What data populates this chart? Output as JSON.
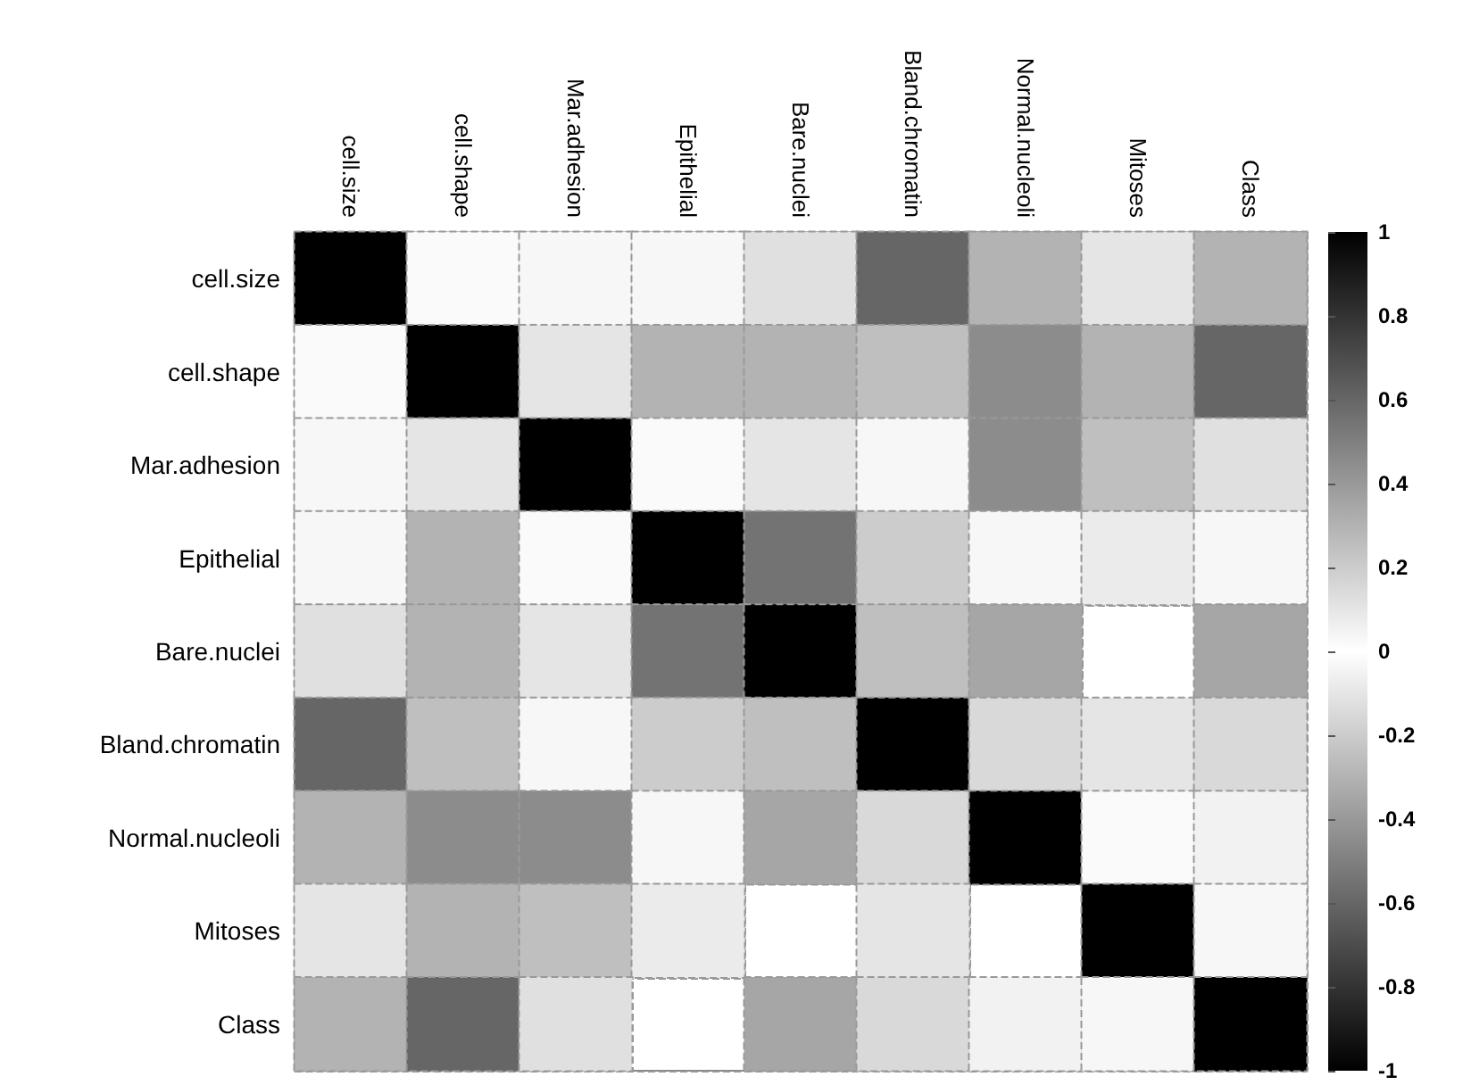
{
  "chart_data": {
    "type": "heatmap",
    "categories": [
      "cell.size",
      "cell.shape",
      "Mar.adhesion",
      "Epithelial",
      "Bare.nuclei",
      "Bland.chromatin",
      "Normal.nucleoli",
      "Mitoses",
      "Class"
    ],
    "y_categories": [
      "cell.size",
      "cell.shape",
      "Mar.adhesion",
      "Epithelial",
      "Bare.nuclei",
      "Bland.chromatin",
      "Normal.nucleoli",
      "Mitoses",
      "Class"
    ],
    "cells": [
      [
        1,
        0.02,
        0.03,
        0.03,
        0.12,
        0.6,
        0.3,
        0.1,
        0.3
      ],
      [
        0.02,
        1,
        0.1,
        0.3,
        0.3,
        0.25,
        0.45,
        0.3,
        0.6
      ],
      [
        0.03,
        0.1,
        1,
        0.02,
        0.1,
        0.03,
        0.45,
        0.25,
        0.12
      ],
      [
        0.03,
        0.3,
        0.02,
        1,
        0.55,
        0.2,
        0.03,
        0.08,
        0.03
      ],
      [
        0.12,
        0.3,
        0.1,
        0.55,
        1,
        0.25,
        0.35,
        null,
        0.35
      ],
      [
        0.6,
        0.25,
        0.03,
        0.2,
        0.25,
        1,
        0.15,
        0.1,
        0.15
      ],
      [
        0.3,
        0.45,
        0.45,
        0.03,
        0.35,
        0.15,
        1,
        0.02,
        0.05
      ],
      [
        0.1,
        0.3,
        0.25,
        0.08,
        null,
        0.1,
        null,
        1,
        0.03
      ],
      [
        0.3,
        0.6,
        0.12,
        null,
        0.35,
        0.15,
        0.05,
        0.03,
        1
      ]
    ],
    "clim": [
      -1,
      1
    ],
    "cticks": [
      -1,
      -0.8,
      -0.6,
      -0.4,
      -0.2,
      0,
      0.2,
      0.4,
      0.6,
      0.8,
      1
    ],
    "grid": true
  }
}
